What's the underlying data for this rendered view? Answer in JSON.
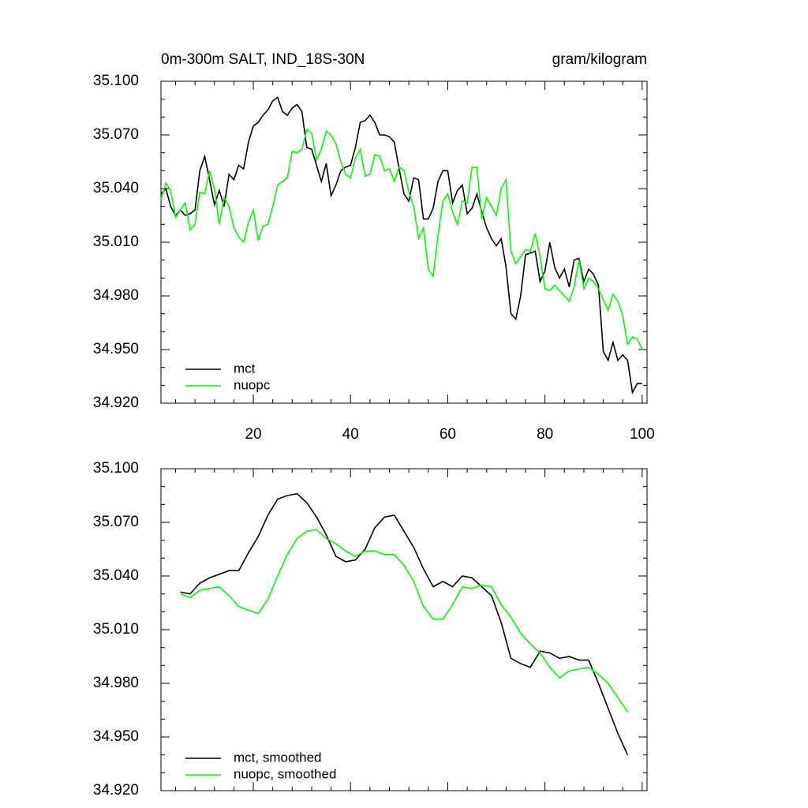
{
  "chart_data": [
    {
      "type": "line",
      "title": "0m-300m SALT, IND_18S-30N",
      "units": "gram/kilogram",
      "x": [
        1,
        2,
        3,
        4,
        5,
        6,
        7,
        8,
        9,
        10,
        11,
        12,
        13,
        14,
        15,
        16,
        17,
        18,
        19,
        20,
        21,
        22,
        23,
        24,
        25,
        26,
        27,
        28,
        29,
        30,
        31,
        32,
        33,
        34,
        35,
        36,
        37,
        38,
        39,
        40,
        41,
        42,
        43,
        44,
        45,
        46,
        47,
        48,
        49,
        50,
        51,
        52,
        53,
        54,
        55,
        56,
        57,
        58,
        59,
        60,
        61,
        62,
        63,
        64,
        65,
        66,
        67,
        68,
        69,
        70,
        71,
        72,
        73,
        74,
        75,
        76,
        77,
        78,
        79,
        80,
        81,
        82,
        83,
        84,
        85,
        86,
        87,
        88,
        89,
        90,
        91,
        92,
        93,
        94,
        95,
        96,
        97,
        98,
        99,
        100
      ],
      "series": [
        {
          "name": "mct",
          "color": "#000000",
          "values": [
            35.037,
            35.04,
            35.03,
            35.025,
            35.028,
            35.025,
            35.026,
            35.028,
            35.05,
            35.058,
            35.045,
            35.031,
            35.039,
            35.03,
            35.048,
            35.045,
            35.053,
            35.051,
            35.066,
            35.075,
            35.077,
            35.081,
            35.084,
            35.089,
            35.091,
            35.083,
            35.081,
            35.085,
            35.087,
            35.083,
            35.063,
            35.062,
            35.053,
            35.044,
            35.054,
            35.036,
            35.042,
            35.05,
            35.052,
            35.053,
            35.063,
            35.077,
            35.078,
            35.081,
            35.077,
            35.07,
            35.07,
            35.069,
            35.066,
            35.051,
            35.037,
            35.033,
            35.046,
            35.045,
            35.023,
            35.023,
            35.029,
            35.044,
            35.05,
            35.05,
            35.032,
            35.039,
            35.042,
            35.026,
            35.029,
            35.037,
            35.027,
            35.018,
            35.012,
            35.008,
            35.012,
            34.996,
            34.97,
            34.967,
            34.98,
            35.003,
            35.004,
            35.005,
            34.988,
            34.994,
            35.01,
            34.996,
            34.99,
            34.995,
            34.985,
            35.0,
            35.001,
            34.988,
            34.995,
            34.992,
            34.986,
            34.949,
            34.944,
            34.954,
            34.944,
            34.947,
            34.944,
            34.926,
            34.931,
            34.931
          ]
        },
        {
          "name": "nuopc",
          "color": "#00ff00",
          "values": [
            35.034,
            35.043,
            35.039,
            35.024,
            35.028,
            35.032,
            35.017,
            35.02,
            35.038,
            35.037,
            35.05,
            35.04,
            35.02,
            35.035,
            35.03,
            35.018,
            35.013,
            35.01,
            35.021,
            35.028,
            35.011,
            35.019,
            35.02,
            35.03,
            35.042,
            35.044,
            35.046,
            35.061,
            35.06,
            35.062,
            35.073,
            35.071,
            35.056,
            35.062,
            35.072,
            35.07,
            35.065,
            35.055,
            35.048,
            35.046,
            35.057,
            35.062,
            35.047,
            35.048,
            35.059,
            35.058,
            35.05,
            35.051,
            35.044,
            35.052,
            35.05,
            35.038,
            35.03,
            35.012,
            35.018,
            34.995,
            34.991,
            35.014,
            35.033,
            35.037,
            35.027,
            35.02,
            35.033,
            35.032,
            35.052,
            35.052,
            35.023,
            35.035,
            35.03,
            35.025,
            35.04,
            35.045,
            35.005,
            34.998,
            35.002,
            35.006,
            35.005,
            35.015,
            35.002,
            34.984,
            34.983,
            34.986,
            34.983,
            34.98,
            34.977,
            34.985,
            35.0,
            34.984,
            34.99,
            34.988,
            34.984,
            34.978,
            34.972,
            34.981,
            34.977,
            34.969,
            34.953,
            34.957,
            34.956,
            34.95
          ]
        }
      ],
      "xlim": [
        1,
        101
      ],
      "ylim": [
        34.92,
        35.1
      ],
      "xticks": [
        20,
        40,
        60,
        80,
        100
      ],
      "show_xtick_labels": true,
      "xminorticks": [
        4,
        8,
        12,
        16,
        24,
        28,
        32,
        36,
        44,
        48,
        52,
        56,
        64,
        68,
        72,
        76,
        84,
        88,
        92,
        96
      ],
      "yticks": [
        {
          "value": 35.1,
          "label": "35.100"
        },
        {
          "value": 35.07,
          "label": "35.070"
        },
        {
          "value": 35.04,
          "label": "35.040"
        },
        {
          "value": 35.01,
          "label": "35.010"
        },
        {
          "value": 34.98,
          "label": "34.980"
        },
        {
          "value": 34.95,
          "label": "34.950"
        },
        {
          "value": 34.92,
          "label": "34.920"
        }
      ],
      "yminorticks": [
        35.09,
        35.08,
        35.06,
        35.05,
        35.03,
        35.02,
        35.0,
        34.99,
        34.97,
        34.96,
        34.94,
        34.93
      ]
    },
    {
      "type": "line",
      "x": [
        5,
        7,
        9,
        11,
        13,
        15,
        17,
        19,
        21,
        23,
        25,
        27,
        29,
        31,
        33,
        35,
        37,
        39,
        41,
        43,
        45,
        47,
        49,
        51,
        53,
        55,
        57,
        59,
        61,
        63,
        65,
        67,
        69,
        71,
        73,
        75,
        77,
        79,
        81,
        83,
        85,
        87,
        89,
        91,
        93,
        95,
        97
      ],
      "series": [
        {
          "name": "mct, smoothed",
          "color": "#000000",
          "values": [
            35.031,
            35.03,
            35.036,
            35.039,
            35.041,
            35.043,
            35.043,
            35.053,
            35.062,
            35.074,
            35.083,
            35.085,
            35.086,
            35.081,
            35.073,
            35.063,
            35.051,
            35.048,
            35.049,
            35.055,
            35.067,
            35.073,
            35.074,
            35.065,
            35.056,
            35.044,
            35.034,
            35.037,
            35.034,
            35.04,
            35.039,
            35.034,
            35.029,
            35.014,
            34.994,
            34.991,
            34.989,
            34.998,
            34.997,
            34.994,
            34.995,
            34.993,
            34.993,
            34.98,
            34.966,
            34.952,
            34.94
          ]
        },
        {
          "name": "nuopc, smoothed",
          "color": "#00ff00",
          "values": [
            35.03,
            35.028,
            35.032,
            35.033,
            35.034,
            35.029,
            35.023,
            35.021,
            35.019,
            35.027,
            35.04,
            35.052,
            35.061,
            35.065,
            35.066,
            35.061,
            35.058,
            35.054,
            35.051,
            35.054,
            35.054,
            35.052,
            35.052,
            35.046,
            35.037,
            35.023,
            35.016,
            35.016,
            35.024,
            35.034,
            35.033,
            35.035,
            35.034,
            35.024,
            35.017,
            35.008,
            35.002,
            34.997,
            34.989,
            34.983,
            34.987,
            34.988,
            34.989,
            34.985,
            34.98,
            34.972,
            34.964
          ]
        }
      ],
      "xlim": [
        1,
        101
      ],
      "ylim": [
        34.92,
        35.1
      ],
      "xticks": [
        20,
        40,
        60,
        80,
        100
      ],
      "show_xtick_labels": false,
      "xminorticks": [
        4,
        8,
        12,
        16,
        24,
        28,
        32,
        36,
        44,
        48,
        52,
        56,
        64,
        68,
        72,
        76,
        84,
        88,
        92,
        96
      ],
      "yticks": [
        {
          "value": 35.1,
          "label": "35.100"
        },
        {
          "value": 35.07,
          "label": "35.070"
        },
        {
          "value": 35.04,
          "label": "35.040"
        },
        {
          "value": 35.01,
          "label": "35.010"
        },
        {
          "value": 34.98,
          "label": "34.980"
        },
        {
          "value": 34.95,
          "label": "34.950"
        },
        {
          "value": 34.92,
          "label": "34.920"
        }
      ],
      "yminorticks": [
        35.09,
        35.08,
        35.06,
        35.05,
        35.03,
        35.02,
        35.0,
        34.99,
        34.97,
        34.96,
        34.94,
        34.93
      ]
    }
  ]
}
